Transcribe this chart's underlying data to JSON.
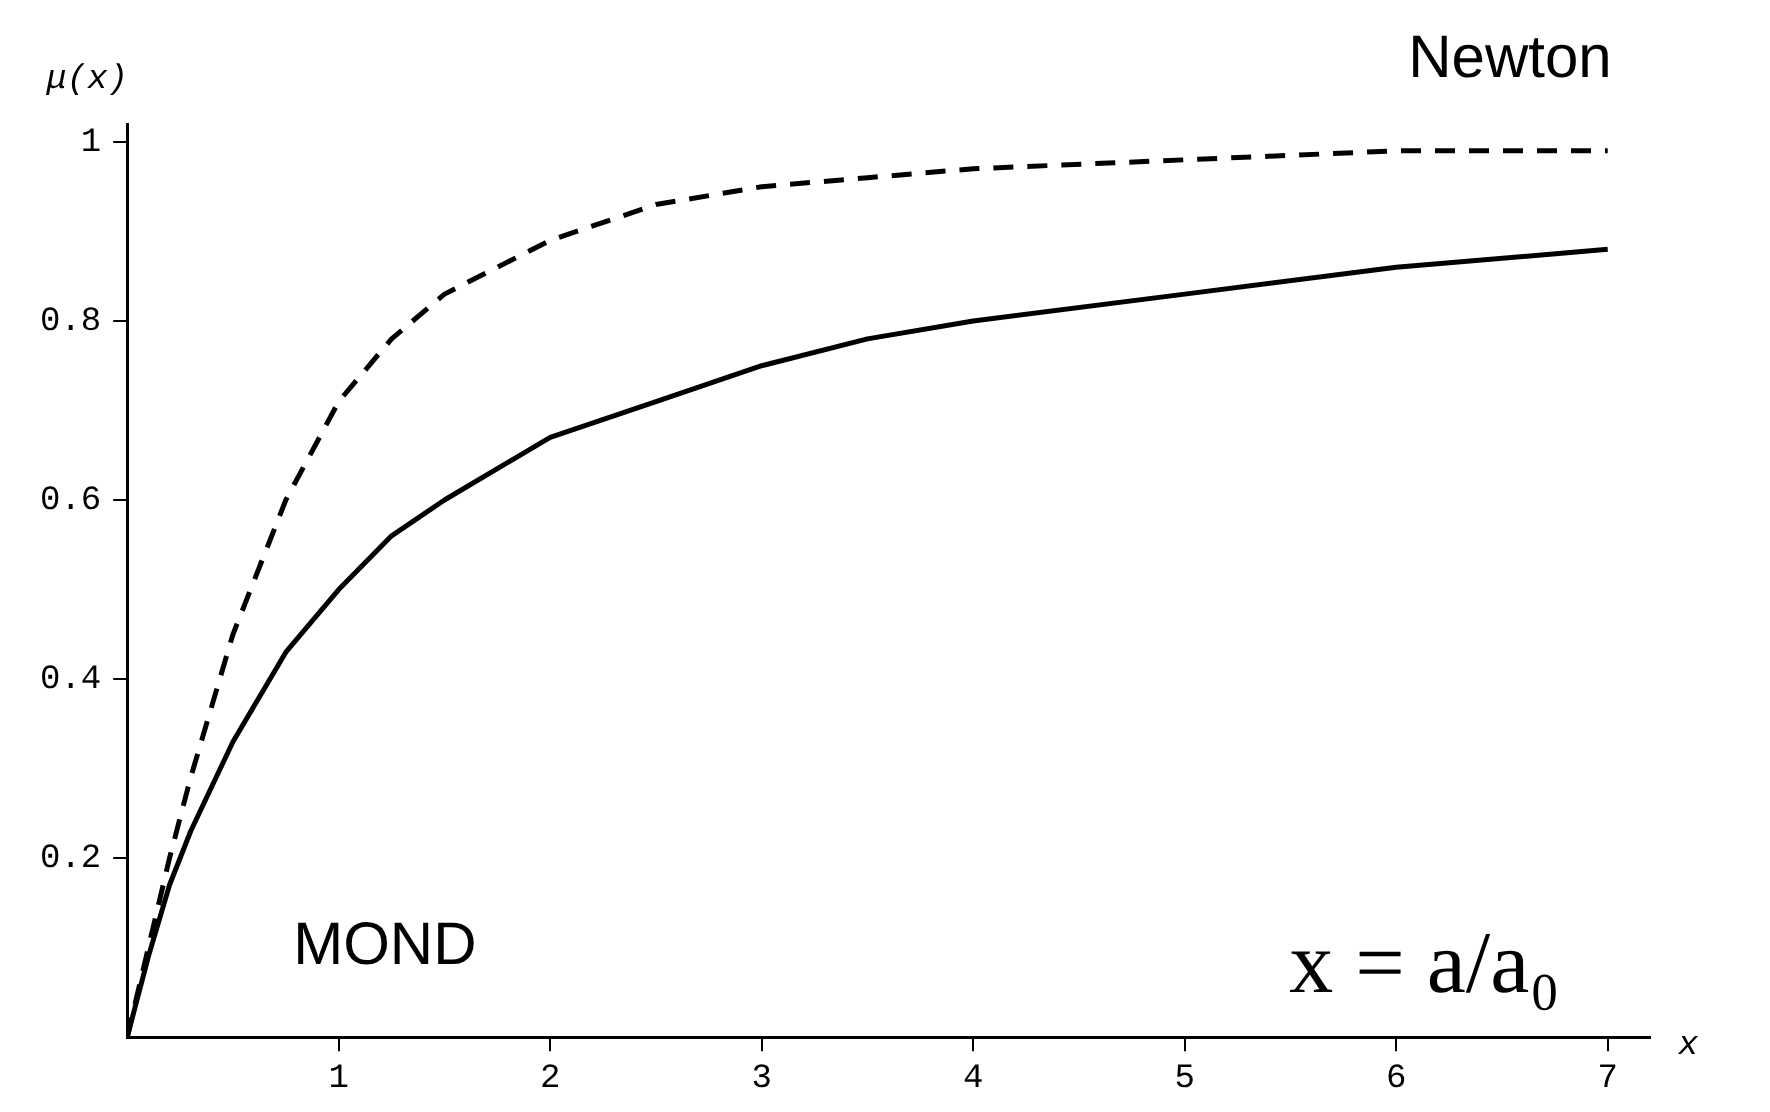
{
  "chart_data": {
    "type": "line",
    "xlabel": "x",
    "ylabel": "μ(x)",
    "xlim": [
      0,
      7.2
    ],
    "ylim": [
      0,
      1.02
    ],
    "xticks": [
      1,
      2,
      3,
      4,
      5,
      6,
      7
    ],
    "yticks": [
      {
        "value": 0.2,
        "label": "0.2"
      },
      {
        "value": 0.4,
        "label": "0.4"
      },
      {
        "value": 0.6,
        "label": "0.6"
      },
      {
        "value": 0.8,
        "label": "0.8"
      },
      1
    ],
    "grid": false,
    "legend": false,
    "marker": "none",
    "x": [
      0,
      0.1,
      0.2,
      0.3,
      0.5,
      0.75,
      1,
      1.25,
      1.5,
      2,
      2.5,
      3,
      3.5,
      4,
      5,
      6,
      7
    ],
    "series": [
      {
        "name": "Newton",
        "color": "#000000",
        "line_style": "dashed",
        "values": [
          0,
          0.1,
          0.2,
          0.29,
          0.45,
          0.6,
          0.71,
          0.78,
          0.83,
          0.89,
          0.93,
          0.95,
          0.96,
          0.97,
          0.98,
          0.99,
          0.99
        ]
      },
      {
        "name": "MOND",
        "color": "#000000",
        "line_style": "solid",
        "values": [
          0,
          0.09,
          0.17,
          0.23,
          0.33,
          0.43,
          0.5,
          0.56,
          0.6,
          0.67,
          0.71,
          0.75,
          0.78,
          0.8,
          0.83,
          0.86,
          0.88
        ]
      }
    ],
    "annotations": [
      "x = a/a₀"
    ]
  }
}
